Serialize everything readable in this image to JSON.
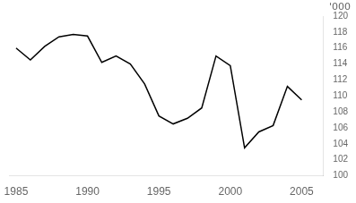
{
  "chart_data": {
    "type": "line",
    "x": [
      1985,
      1986,
      1987,
      1988,
      1989,
      1990,
      1991,
      1992,
      1993,
      1994,
      1995,
      1996,
      1997,
      1998,
      1999,
      2000,
      2001,
      2002,
      2003,
      2004,
      2005
    ],
    "values": [
      116.0,
      114.5,
      116.2,
      117.4,
      117.7,
      117.5,
      114.2,
      115.0,
      114.0,
      111.5,
      107.5,
      106.5,
      107.2,
      108.5,
      115.0,
      113.8,
      103.5,
      105.5,
      106.3,
      111.2,
      109.5
    ],
    "color": "#000000",
    "xlim": [
      1984.5,
      2006.5
    ],
    "xticks": [
      1985,
      1990,
      1995,
      2000,
      2005
    ],
    "ylim": [
      100,
      120
    ],
    "yticks": [
      100,
      102,
      104,
      106,
      108,
      110,
      112,
      114,
      116,
      118,
      120
    ],
    "ylabel": "'000",
    "grid": false
  }
}
